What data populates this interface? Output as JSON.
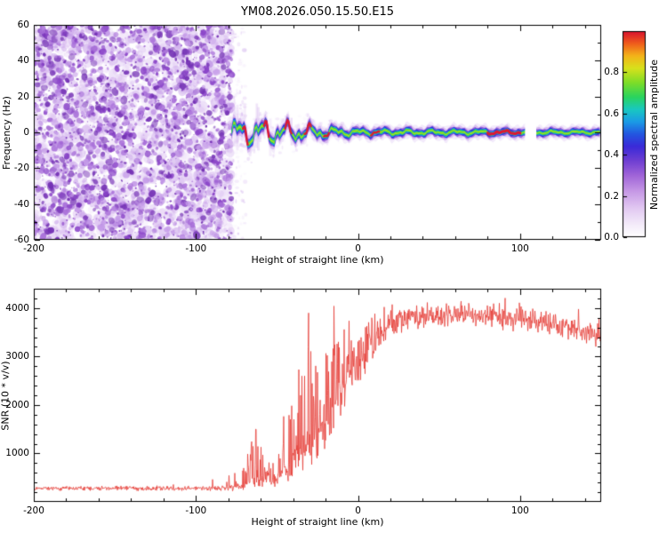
{
  "figure": {
    "background": "#ffffff",
    "title": "YM08.2026.050.15.50.E15"
  },
  "chart_data": [
    {
      "type": "heatmap",
      "title": "YM08.2026.050.15.50.E15",
      "xlabel": "Height of straight line (km)",
      "ylabel": "Frequency (Hz)",
      "xlim": [
        -200,
        150
      ],
      "ylim": [
        -60,
        60
      ],
      "xticks": [
        -200,
        -100,
        0,
        100
      ],
      "yticks": [
        -60,
        -40,
        -20,
        0,
        20,
        40,
        60
      ],
      "x_minor_step": 20,
      "y_minor_step": 10,
      "grid": false,
      "colorbar": {
        "label": "Normalized spectral amplitude",
        "ticks": [
          0.0,
          0.2,
          0.4,
          0.6,
          0.8
        ],
        "range": [
          0,
          1
        ],
        "colormap": [
          {
            "v": 0.0,
            "c": "#ffffff"
          },
          {
            "v": 0.06,
            "c": "#f4ecfa"
          },
          {
            "v": 0.14,
            "c": "#e2c9f2"
          },
          {
            "v": 0.22,
            "c": "#c79ae6"
          },
          {
            "v": 0.3,
            "c": "#a064d8"
          },
          {
            "v": 0.37,
            "c": "#6f3fd2"
          },
          {
            "v": 0.44,
            "c": "#3a2ad8"
          },
          {
            "v": 0.5,
            "c": "#2356e0"
          },
          {
            "v": 0.56,
            "c": "#1b9be6"
          },
          {
            "v": 0.62,
            "c": "#19c8c0"
          },
          {
            "v": 0.68,
            "c": "#2ad45e"
          },
          {
            "v": 0.75,
            "c": "#7edd28"
          },
          {
            "v": 0.82,
            "c": "#d8e11c"
          },
          {
            "v": 0.88,
            "c": "#f4b319"
          },
          {
            "v": 0.94,
            "c": "#ef5c1c"
          },
          {
            "v": 1.0,
            "c": "#d8102f"
          }
        ]
      },
      "noise_region": {
        "x_range": [
          -200,
          -78
        ],
        "description": "broadband incoherent purple speckle noise across all frequencies",
        "palette": [
          "#efe3fa",
          "#ddc2f2",
          "#c49ae8",
          "#a86fd9",
          "#8a44c8",
          "#7330b4"
        ]
      },
      "signal_band": {
        "x_range": [
          -78,
          150
        ],
        "center_frequency_hz": 0,
        "wobble_hz_by_x": [
          [
            -78,
            4.5
          ],
          [
            -60,
            4.8
          ],
          [
            -40,
            3.5
          ],
          [
            -20,
            2.0
          ],
          [
            0,
            1.0
          ],
          [
            150,
            0.5
          ]
        ],
        "width_scale_by_x": [
          [
            -78,
            1.4
          ],
          [
            -55,
            1.25
          ],
          [
            -30,
            1.15
          ],
          [
            0,
            1.0
          ],
          [
            150,
            0.88
          ]
        ],
        "layers": [
          {
            "width_hz": 9.0,
            "color": "#e9dbf7",
            "alpha": 0.55
          },
          {
            "width_hz": 6.5,
            "color": "#cfa9ec",
            "alpha": 0.7
          },
          {
            "width_hz": 4.8,
            "color": "#8d55d6",
            "alpha": 0.9
          },
          {
            "width_hz": 3.6,
            "color": "#2c2fdc",
            "alpha": 1
          },
          {
            "width_hz": 2.6,
            "color": "#17a3e2",
            "alpha": 1
          },
          {
            "width_hz": 1.7,
            "color": "#2bcf52",
            "alpha": 1
          },
          {
            "width_hz": 0.9,
            "color": "#a8e21f",
            "alpha": 0.95
          }
        ],
        "red_color": "#dd1833",
        "red_segments": [
          {
            "x0": -71,
            "x1": -68,
            "w": 2.4
          },
          {
            "x0": -58,
            "x1": -55,
            "w": 2.4
          },
          {
            "x0": -45,
            "x1": -41,
            "w": 2.4
          },
          {
            "x0": -33,
            "x1": -29,
            "w": 2.4
          },
          {
            "x0": -21,
            "x1": -18,
            "w": 2.4
          },
          {
            "x0": 8,
            "x1": 13,
            "w": 2.4
          },
          {
            "x0": 80,
            "x1": 100,
            "w": 3.2
          }
        ],
        "gap": [
          103,
          110
        ]
      }
    },
    {
      "type": "line",
      "series_name": "SNR",
      "color": "#e63f38",
      "xlabel": "Height of straight line (km)",
      "ylabel": "SNR (10 * v/v)",
      "xlim": [
        -200,
        150
      ],
      "ylim": [
        0,
        4400
      ],
      "xticks": [
        -200,
        -100,
        0,
        100
      ],
      "yticks": [
        1000,
        2000,
        3000,
        4000
      ],
      "x_minor_step": 20,
      "y_minor_step": 200,
      "profile_format": "[x_km, mean, noise_sd, spike_amp, spike_prob]",
      "profile": [
        [
          -200,
          280,
          55,
          0,
          0
        ],
        [
          -100,
          280,
          55,
          100,
          0.02
        ],
        [
          -80,
          290,
          70,
          200,
          0.05
        ],
        [
          -72,
          310,
          90,
          500,
          0.15
        ],
        [
          -66,
          420,
          180,
          900,
          0.35
        ],
        [
          -58,
          520,
          260,
          900,
          0.3
        ],
        [
          -52,
          420,
          180,
          500,
          0.15
        ],
        [
          -46,
          650,
          320,
          1100,
          0.3
        ],
        [
          -40,
          850,
          420,
          1400,
          0.3
        ],
        [
          -34,
          1050,
          550,
          2200,
          0.25
        ],
        [
          -28,
          1350,
          650,
          1900,
          0.3
        ],
        [
          -22,
          1600,
          750,
          1600,
          0.3
        ],
        [
          -15,
          1950,
          800,
          1400,
          0.3
        ],
        [
          -8,
          2350,
          750,
          1100,
          0.3
        ],
        [
          -2,
          2700,
          650,
          900,
          0.25
        ],
        [
          5,
          3100,
          520,
          600,
          0.2
        ],
        [
          12,
          3450,
          400,
          350,
          0.15
        ],
        [
          22,
          3700,
          300,
          200,
          0.1
        ],
        [
          40,
          3820,
          260,
          150,
          0.1
        ],
        [
          70,
          3870,
          250,
          150,
          0.1
        ],
        [
          95,
          3790,
          280,
          150,
          0.1
        ],
        [
          115,
          3700,
          300,
          150,
          0.1
        ],
        [
          135,
          3580,
          310,
          150,
          0.1
        ],
        [
          150,
          3430,
          330,
          150,
          0.1
        ]
      ],
      "forced_spikes": [
        [
          -30.5,
          3900
        ],
        [
          -33,
          2600
        ],
        [
          -63,
          1500
        ]
      ]
    }
  ]
}
